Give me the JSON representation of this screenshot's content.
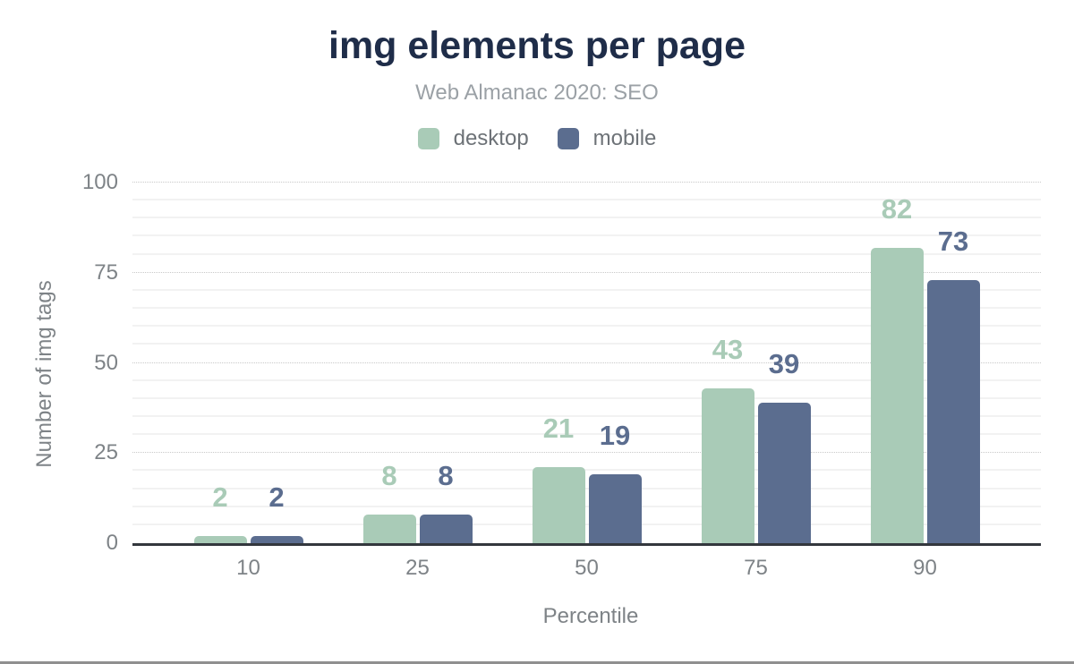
{
  "header": {
    "title": "img elements per page",
    "subtitle": "Web Almanac 2020: SEO"
  },
  "chart_data": {
    "type": "bar",
    "title": "img elements per page",
    "subtitle": "Web Almanac 2020: SEO",
    "categories": [
      "10",
      "25",
      "50",
      "75",
      "90"
    ],
    "series": [
      {
        "name": "desktop",
        "color": "#a9cbb7",
        "values": [
          2,
          8,
          21,
          43,
          82
        ]
      },
      {
        "name": "mobile",
        "color": "#5b6d8f",
        "values": [
          2,
          8,
          19,
          39,
          73
        ]
      }
    ],
    "xlabel": "Percentile",
    "ylabel": "Number of img tags",
    "ylim": [
      0,
      100
    ],
    "yticks": [
      0,
      25,
      50,
      75,
      100
    ],
    "minor_grid_step": 5,
    "major_grid_step": 25,
    "major_grid_style": "dotted",
    "legend_position": "top",
    "data_labels": true
  },
  "colors": {
    "background": "#ffffff",
    "title": "#1f2d49",
    "subtitle": "#9ba1a6",
    "legend_text": "#6d7277",
    "tick_text": "#7e8387",
    "axis_title_text": "#7e8387",
    "axis_line": "#33373d",
    "major_gridline": "#c9c9c9",
    "minor_gridline": "#f2f2f2",
    "desktop_series": "#a9cbb7",
    "mobile_series": "#5b6d8f",
    "footer_rule": "#8f8f8f"
  }
}
